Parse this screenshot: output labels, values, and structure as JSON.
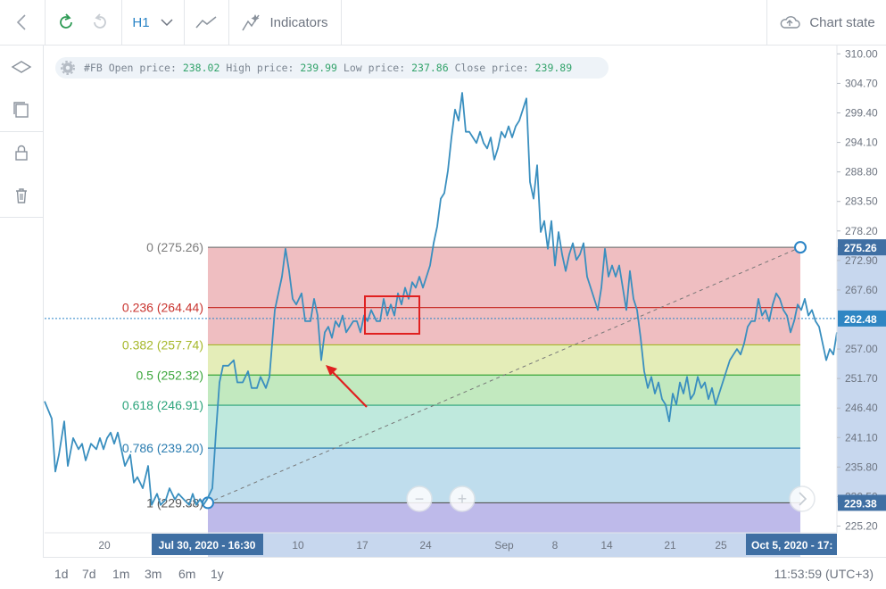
{
  "toolbar": {
    "timeframe": "H1",
    "indicators_label": "Indicators",
    "chart_state_label": "Chart state"
  },
  "info": {
    "symbol": "#FB",
    "open_label": "Open price:",
    "open": "238.02",
    "high_label": "High price:",
    "high": "239.99",
    "low_label": "Low price:",
    "low": "237.86",
    "close_label": "Close price:",
    "close": "239.89"
  },
  "ranges": [
    "1d",
    "7d",
    "1m",
    "3m",
    "6m",
    "1y"
  ],
  "clock": "11:53:59 (UTC+3)",
  "colors": {
    "line": "#3a8fbf",
    "accent": "#2a84c6",
    "annotation": "#e02020"
  },
  "chart_data": {
    "type": "line",
    "symbol": "#FB",
    "timeframe": "H1",
    "y_ticks": [
      "310.00",
      "304.70",
      "299.40",
      "294.10",
      "288.80",
      "283.50",
      "278.20",
      "272.90",
      "267.60",
      "257.00",
      "251.70",
      "246.40",
      "241.10",
      "235.80",
      "230.50",
      "225.20"
    ],
    "x_ticks": [
      "20",
      "10",
      "17",
      "24",
      "Sep",
      "8",
      "14",
      "21",
      "25"
    ],
    "ylim": [
      224.0,
      311.5
    ],
    "price_marker": "262.48",
    "price_marker_y": 262.48,
    "fib_start_label": "Jul 30, 2020 - 16:30",
    "fib_end_label": "Oct 5, 2020 - 17:",
    "fib_high_tag": "275.26",
    "fib_low_tag": "229.38",
    "fib_levels": [
      {
        "label": "0 (275.26)",
        "value": 275.26,
        "color": "#7c7c7c",
        "fill": "#e8a3a6"
      },
      {
        "label": "0.236 (264.44)",
        "value": 264.44,
        "color": "#c9342f",
        "fill": "#e8a3a6"
      },
      {
        "label": "0.382 (257.74)",
        "value": 257.74,
        "color": "#a6b82a",
        "fill": "#d8e59a"
      },
      {
        "label": "0.5 (252.32)",
        "value": 252.32,
        "color": "#3aa53a",
        "fill": "#a8e0a4"
      },
      {
        "label": "0.618 (246.91)",
        "value": 246.91,
        "color": "#2aa37a",
        "fill": "#a4e0cf"
      },
      {
        "label": "0.786 (239.20)",
        "value": 239.2,
        "color": "#2a7cb0",
        "fill": "#a4cfe6"
      },
      {
        "label": "1 (229.38)",
        "value": 229.38,
        "color": "#555555",
        "fill": "#c9c9c9"
      }
    ],
    "below_fill": "#b3aee6",
    "series": [
      {
        "values": [
          [
            50,
            247.6
          ],
          [
            58,
            244.5
          ],
          [
            62,
            235
          ],
          [
            66,
            238
          ],
          [
            72,
            244
          ],
          [
            76,
            236
          ],
          [
            82,
            241
          ],
          [
            88,
            239
          ],
          [
            92,
            240
          ],
          [
            96,
            237
          ],
          [
            102,
            240
          ],
          [
            108,
            239
          ],
          [
            112,
            241
          ],
          [
            116,
            239
          ],
          [
            120,
            241
          ],
          [
            124,
            242
          ],
          [
            128,
            240
          ],
          [
            132,
            242
          ],
          [
            136,
            239
          ],
          [
            140,
            236
          ],
          [
            146,
            238
          ],
          [
            150,
            233
          ],
          [
            154,
            234
          ],
          [
            160,
            232
          ],
          [
            166,
            236
          ],
          [
            170,
            229
          ],
          [
            176,
            231
          ],
          [
            180,
            229
          ],
          [
            186,
            230
          ],
          [
            190,
            232
          ],
          [
            196,
            230
          ],
          [
            200,
            231
          ],
          [
            206,
            230
          ],
          [
            212,
            229
          ],
          [
            216,
            231
          ],
          [
            220,
            229
          ],
          [
            224,
            230
          ],
          [
            228,
            229
          ],
          [
            232,
            230
          ],
          [
            238,
            232
          ],
          [
            242,
            242
          ],
          [
            246,
            251
          ],
          [
            250,
            254
          ],
          [
            256,
            254
          ],
          [
            262,
            255
          ],
          [
            266,
            251
          ],
          [
            272,
            251
          ],
          [
            278,
            253
          ],
          [
            282,
            250
          ],
          [
            288,
            250
          ],
          [
            292,
            252
          ],
          [
            298,
            250
          ],
          [
            302,
            252
          ],
          [
            308,
            264
          ],
          [
            312,
            267
          ],
          [
            316,
            270
          ],
          [
            320,
            275
          ],
          [
            324,
            271
          ],
          [
            328,
            266
          ],
          [
            332,
            265
          ],
          [
            338,
            267
          ],
          [
            342,
            262
          ],
          [
            348,
            262
          ],
          [
            352,
            266
          ],
          [
            356,
            263
          ],
          [
            360,
            255
          ],
          [
            364,
            260
          ],
          [
            368,
            261
          ],
          [
            372,
            259
          ],
          [
            376,
            262
          ],
          [
            380,
            261
          ],
          [
            384,
            263
          ],
          [
            388,
            260
          ],
          [
            392,
            261
          ],
          [
            396,
            262
          ],
          [
            400,
            262
          ],
          [
            404,
            260
          ],
          [
            408,
            263
          ],
          [
            412,
            262
          ],
          [
            416,
            264
          ],
          [
            422,
            262
          ],
          [
            426,
            262
          ],
          [
            430,
            266
          ],
          [
            434,
            263
          ],
          [
            438,
            265
          ],
          [
            442,
            263
          ],
          [
            446,
            267
          ],
          [
            450,
            265
          ],
          [
            454,
            268
          ],
          [
            458,
            266
          ],
          [
            462,
            269
          ],
          [
            466,
            268
          ],
          [
            470,
            270
          ],
          [
            474,
            268
          ],
          [
            478,
            270
          ],
          [
            482,
            272
          ],
          [
            486,
            276
          ],
          [
            490,
            279
          ],
          [
            494,
            284
          ],
          [
            498,
            285
          ],
          [
            502,
            289
          ],
          [
            506,
            295
          ],
          [
            510,
            300
          ],
          [
            514,
            298
          ],
          [
            518,
            303
          ],
          [
            522,
            296
          ],
          [
            526,
            296
          ],
          [
            530,
            295
          ],
          [
            534,
            294
          ],
          [
            538,
            296
          ],
          [
            542,
            294
          ],
          [
            546,
            293
          ],
          [
            550,
            295
          ],
          [
            554,
            291
          ],
          [
            558,
            293
          ],
          [
            562,
            296
          ],
          [
            566,
            295
          ],
          [
            570,
            297
          ],
          [
            574,
            295
          ],
          [
            578,
            297
          ],
          [
            582,
            298
          ],
          [
            586,
            300
          ],
          [
            590,
            302
          ],
          [
            594,
            287
          ],
          [
            598,
            284
          ],
          [
            602,
            290
          ],
          [
            606,
            278
          ],
          [
            610,
            280
          ],
          [
            614,
            275
          ],
          [
            618,
            280
          ],
          [
            622,
            272
          ],
          [
            626,
            278
          ],
          [
            630,
            274
          ],
          [
            634,
            271
          ],
          [
            638,
            274
          ],
          [
            642,
            276
          ],
          [
            646,
            273
          ],
          [
            650,
            274
          ],
          [
            654,
            276
          ],
          [
            658,
            270
          ],
          [
            662,
            268
          ],
          [
            666,
            266
          ],
          [
            670,
            264
          ],
          [
            674,
            268
          ],
          [
            678,
            275
          ],
          [
            682,
            270
          ],
          [
            686,
            272
          ],
          [
            690,
            270
          ],
          [
            694,
            272
          ],
          [
            698,
            268
          ],
          [
            702,
            264
          ],
          [
            706,
            271
          ],
          [
            710,
            266
          ],
          [
            714,
            264
          ],
          [
            718,
            259
          ],
          [
            722,
            253
          ],
          [
            726,
            250
          ],
          [
            730,
            252
          ],
          [
            734,
            249
          ],
          [
            738,
            251
          ],
          [
            742,
            248
          ],
          [
            746,
            247
          ],
          [
            750,
            244
          ],
          [
            754,
            249
          ],
          [
            758,
            247
          ],
          [
            762,
            251
          ],
          [
            766,
            249
          ],
          [
            770,
            252
          ],
          [
            774,
            248
          ],
          [
            778,
            249
          ],
          [
            782,
            252
          ],
          [
            786,
            250
          ],
          [
            790,
            251
          ],
          [
            794,
            248
          ],
          [
            798,
            250
          ],
          [
            802,
            247
          ],
          [
            806,
            249
          ],
          [
            810,
            251
          ],
          [
            814,
            253
          ],
          [
            818,
            255
          ],
          [
            822,
            256
          ],
          [
            826,
            257
          ],
          [
            830,
            256
          ],
          [
            834,
            258
          ],
          [
            838,
            261
          ],
          [
            842,
            262
          ],
          [
            846,
            262
          ],
          [
            850,
            266
          ],
          [
            854,
            263
          ],
          [
            858,
            264
          ],
          [
            862,
            262
          ],
          [
            866,
            265
          ],
          [
            870,
            267
          ],
          [
            874,
            266
          ],
          [
            878,
            264
          ],
          [
            882,
            263
          ],
          [
            886,
            260
          ],
          [
            890,
            262
          ],
          [
            894,
            265
          ],
          [
            898,
            264
          ],
          [
            902,
            266
          ],
          [
            906,
            263
          ],
          [
            910,
            264
          ],
          [
            914,
            262
          ],
          [
            918,
            261
          ],
          [
            922,
            258
          ],
          [
            926,
            255
          ],
          [
            930,
            257
          ],
          [
            934,
            256
          ],
          [
            938,
            260
          ]
        ]
      }
    ]
  }
}
